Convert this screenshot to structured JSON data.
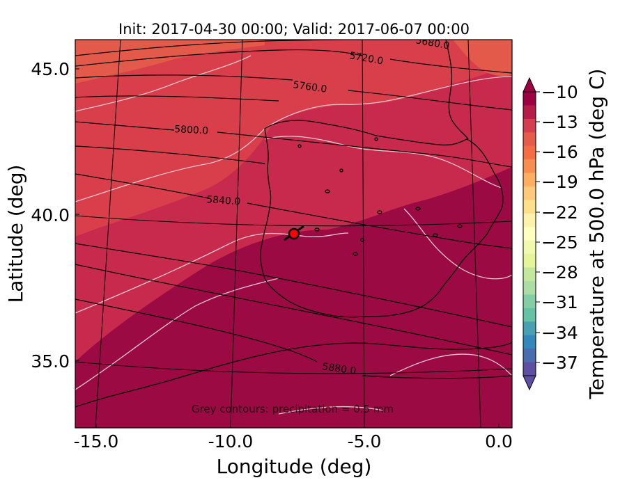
{
  "title": "Init: 2017-04-30 00:00; Valid: 2017-06-07 00:00",
  "x_axis": {
    "label": "Longitude (deg)",
    "ticks": [
      "-15.0",
      "-10.0",
      "-5.0",
      "0.0"
    ]
  },
  "y_axis": {
    "label": "Latitude (deg)",
    "ticks": [
      "45.0",
      "40.0",
      "35.0"
    ]
  },
  "colorbar": {
    "label": "Temperature at 500.0 hPa (deg C)",
    "ticks": [
      "−10",
      "−13",
      "−16",
      "−19",
      "−22",
      "−25",
      "−28",
      "−31",
      "−34",
      "−37"
    ],
    "colormap": "Spectral_r",
    "range": [
      -38,
      -10
    ]
  },
  "contour_labels": {
    "c5680": "5680.0",
    "c5720": "5720.0",
    "c5760": "5760.0",
    "c5800": "5800.0",
    "c5840": "5840.0",
    "c5880": "5880.0"
  },
  "footnote": "Grey contours: precipitation = 0.5 mm",
  "marker": {
    "color": "#ff0000",
    "lon": -7.6,
    "lat": 39.3
  },
  "colors": {
    "warm_fill": "#c72a4d",
    "hot_fill": "#9b0a43",
    "top_fill": "#e35a4a",
    "precip_contour": "#e8c8cf",
    "height_contour": "#000000"
  }
}
